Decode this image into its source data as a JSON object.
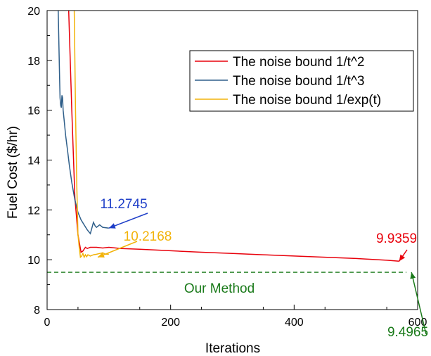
{
  "chart_data": {
    "type": "line",
    "xlabel": "Iterations",
    "ylabel": "Fuel Cost ($/hr)",
    "xlim": [
      0,
      600
    ],
    "ylim": [
      8,
      20
    ],
    "xticks": [
      0,
      200,
      400,
      600
    ],
    "yticks": [
      8,
      10,
      12,
      14,
      16,
      18,
      20
    ],
    "grid": false,
    "legend_position": "top-right",
    "series": [
      {
        "name": "The noise bound  1/t^2",
        "color": "#e8000b",
        "x": [
          35,
          40,
          45,
          50,
          55,
          58,
          62,
          65,
          70,
          80,
          90,
          100,
          120,
          150,
          200,
          250,
          300,
          350,
          400,
          450,
          500,
          550,
          570
        ],
        "y": [
          20,
          16,
          12.5,
          11.0,
          10.3,
          10.35,
          10.5,
          10.45,
          10.5,
          10.5,
          10.47,
          10.5,
          10.45,
          10.42,
          10.36,
          10.3,
          10.25,
          10.2,
          10.15,
          10.1,
          10.05,
          9.98,
          9.94
        ]
      },
      {
        "name": "The noise bound  1/t^3",
        "color": "#2f5f8a",
        "x": [
          18,
          20,
          21,
          22,
          23,
          24,
          25,
          26,
          28,
          30,
          33,
          36,
          40,
          45,
          50,
          55,
          60,
          65,
          70,
          75,
          78,
          80,
          85,
          90,
          100
        ],
        "y": [
          20,
          17.5,
          16.5,
          16.2,
          16.1,
          16.6,
          16.5,
          16.0,
          15.5,
          15.0,
          14.4,
          13.8,
          13.1,
          12.4,
          11.9,
          11.6,
          11.4,
          11.2,
          11.05,
          11.5,
          11.35,
          11.3,
          11.4,
          11.3,
          11.27
        ]
      },
      {
        "name": "The noise bound  1/exp(t)",
        "color": "#f2b30a",
        "x": [
          44,
          46,
          48,
          50,
          52,
          54,
          56,
          58,
          60,
          62,
          64,
          66,
          70,
          75,
          80,
          85,
          90,
          95,
          100
        ],
        "y": [
          20,
          16,
          13,
          11.0,
          10.5,
          10.1,
          10.15,
          10.25,
          10.1,
          10.2,
          10.12,
          10.2,
          10.15,
          10.2,
          10.22,
          10.25,
          10.28,
          10.22,
          10.22
        ]
      }
    ],
    "reference_line": {
      "label": "Our Method",
      "y": 9.4965,
      "color": "#1a7a1a",
      "style": "dashed"
    },
    "annotations": [
      {
        "text": "11.2745",
        "color": "#1f3fc8",
        "target_x": 100,
        "target_y": 11.27
      },
      {
        "text": "10.2168",
        "color": "#f2b30a",
        "target_x": 82,
        "target_y": 10.1
      },
      {
        "text": "9.9359",
        "color": "#e8000b",
        "target_x": 570,
        "target_y": 9.94
      },
      {
        "text": "9.4965",
        "color": "#1a7a1a",
        "target_x": 590,
        "target_y": 9.5
      }
    ]
  }
}
